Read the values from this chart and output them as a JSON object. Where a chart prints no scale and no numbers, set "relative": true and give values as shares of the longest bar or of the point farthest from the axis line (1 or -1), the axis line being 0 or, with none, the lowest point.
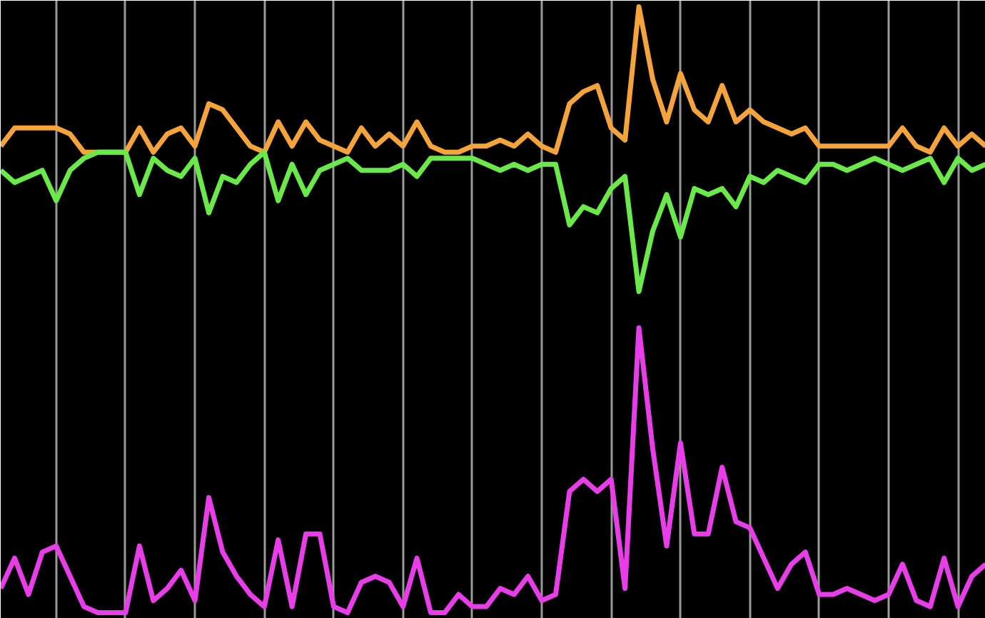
{
  "chart_data": {
    "type": "line",
    "relative": true,
    "grid": "x",
    "tick_labels": false,
    "line_style": "solid",
    "categories": [
      null,
      null,
      null,
      null,
      null,
      null,
      null,
      null,
      null,
      null,
      null,
      null,
      null,
      null,
      null,
      null,
      null,
      null,
      null,
      null,
      null,
      null,
      null,
      null,
      null,
      null,
      null,
      null,
      null,
      null,
      null,
      null,
      null,
      null,
      null,
      null,
      null,
      null,
      null,
      null,
      null,
      null,
      null,
      null,
      null,
      null,
      null,
      null,
      null,
      null,
      null,
      null,
      null,
      null,
      null,
      null,
      null,
      null,
      null,
      null,
      null,
      null,
      null,
      null,
      null,
      null,
      null,
      null,
      null,
      null,
      null,
      null
    ],
    "series": [
      {
        "color": "#f5a43c",
        "values": [
          0.77,
          0.8,
          0.8,
          0.8,
          0.8,
          0.79,
          0.76,
          0.76,
          0.76,
          0.76,
          0.8,
          0.76,
          0.79,
          0.8,
          0.77,
          0.84,
          0.83,
          0.8,
          0.77,
          0.76,
          0.81,
          0.77,
          0.81,
          0.78,
          0.77,
          0.76,
          0.8,
          0.77,
          0.79,
          0.77,
          0.81,
          0.77,
          0.76,
          0.76,
          0.77,
          0.77,
          0.78,
          0.77,
          0.79,
          0.77,
          0.76,
          0.84,
          0.86,
          0.87,
          0.8,
          0.78,
          1,
          0.88,
          0.81,
          0.89,
          0.83,
          0.81,
          0.87,
          0.81,
          0.83,
          0.81,
          0.8,
          0.79,
          0.8,
          0.77,
          0.77,
          0.77,
          0.77,
          0.77,
          0.77,
          0.8,
          0.77,
          0.76,
          0.8,
          0.77,
          0.79,
          0.77
        ]
      },
      {
        "color": "#6be84a",
        "values": [
          0.73,
          0.71,
          0.72,
          0.73,
          0.68,
          0.73,
          0.75,
          0.76,
          0.76,
          0.76,
          0.69,
          0.75,
          0.73,
          0.72,
          0.75,
          0.66,
          0.72,
          0.71,
          0.74,
          0.76,
          0.68,
          0.74,
          0.69,
          0.73,
          0.74,
          0.75,
          0.73,
          0.73,
          0.73,
          0.74,
          0.72,
          0.75,
          0.75,
          0.75,
          0.75,
          0.74,
          0.73,
          0.74,
          0.73,
          0.74,
          0.74,
          0.64,
          0.67,
          0.66,
          0.7,
          0.72,
          0.53,
          0.63,
          0.69,
          0.62,
          0.7,
          0.69,
          0.7,
          0.67,
          0.72,
          0.71,
          0.73,
          0.72,
          0.71,
          0.74,
          0.74,
          0.73,
          0.74,
          0.75,
          0.74,
          0.73,
          0.74,
          0.75,
          0.71,
          0.75,
          0.73,
          0.74
        ]
      },
      {
        "color": "#e83ee8",
        "values": [
          0.04,
          0.09,
          0.03,
          0.1,
          0.11,
          0.06,
          0.01,
          0,
          0,
          0,
          0.11,
          0.02,
          0.04,
          0.07,
          0.02,
          0.19,
          0.1,
          0.06,
          0.03,
          0.01,
          0.12,
          0.01,
          0.13,
          0.13,
          0.01,
          0,
          0.05,
          0.06,
          0.05,
          0.01,
          0.09,
          0,
          0,
          0.03,
          0.01,
          0.01,
          0.04,
          0.03,
          0.06,
          0.02,
          0.03,
          0.2,
          0.22,
          0.2,
          0.22,
          0.04,
          0.47,
          0.27,
          0.11,
          0.28,
          0.13,
          0.13,
          0.24,
          0.15,
          0.14,
          0.09,
          0.04,
          0.08,
          0.1,
          0.03,
          0.03,
          0.04,
          0.03,
          0.02,
          0.03,
          0.08,
          0.02,
          0.01,
          0.09,
          0.01,
          0.06,
          0.08
        ]
      }
    ]
  }
}
